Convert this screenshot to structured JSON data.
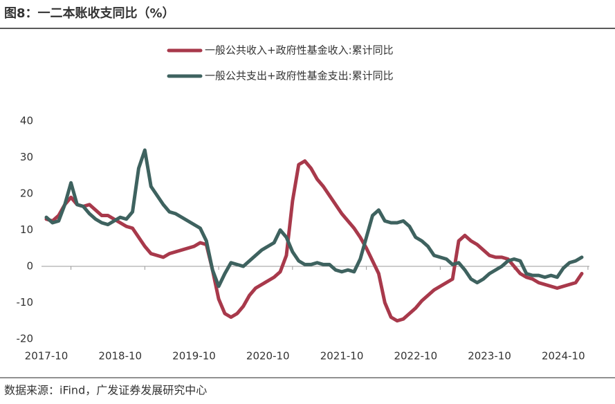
{
  "chart_data": {
    "type": "line",
    "title": "图8：一二本账收支同比（%）",
    "source": "数据来源：iFind，广发证券发展研究中心",
    "categories": [
      "2017-10",
      null,
      null,
      null,
      null,
      null,
      null,
      null,
      null,
      null,
      null,
      null,
      "2018-10",
      null,
      null,
      null,
      null,
      null,
      null,
      null,
      null,
      null,
      null,
      null,
      "2019-10",
      null,
      null,
      null,
      null,
      null,
      null,
      null,
      null,
      null,
      null,
      null,
      "2020-10",
      null,
      null,
      null,
      null,
      null,
      null,
      null,
      null,
      null,
      null,
      null,
      "2021-10",
      null,
      null,
      null,
      null,
      null,
      null,
      null,
      null,
      null,
      null,
      null,
      "2022-10",
      null,
      null,
      null,
      null,
      null,
      null,
      null,
      null,
      null,
      null,
      null,
      "2023-10",
      null,
      null,
      null,
      null,
      null,
      null,
      null,
      null,
      null,
      null,
      null,
      "2024-10",
      null,
      null,
      null
    ],
    "series": [
      {
        "name": "一般公共收入+政府性基金收入:累计同比",
        "color": "#a8394b",
        "values": [
          13,
          12.5,
          14,
          17,
          19,
          17,
          16.5,
          17,
          15.5,
          14,
          14,
          13,
          12,
          11,
          10.5,
          8,
          5.5,
          3.5,
          3,
          2.5,
          3.5,
          4,
          4.5,
          5,
          5.5,
          6.5,
          6,
          -1,
          -9,
          -13,
          -14,
          -13,
          -11,
          -8,
          -6,
          -5,
          -4,
          -3,
          -1.5,
          3,
          18,
          28,
          29,
          27,
          24,
          22,
          19.5,
          17,
          14.5,
          12.5,
          10.5,
          8,
          5,
          1.5,
          -2,
          -10,
          -14,
          -15,
          -14.5,
          -13,
          -11.5,
          -9.5,
          -8,
          -6.5,
          -5.5,
          -4.5,
          -3.5,
          7,
          8.5,
          7,
          6,
          4.5,
          3,
          2.5,
          2.5,
          2,
          0,
          -2,
          -3,
          -3.5,
          -4.5,
          -5,
          -5.5,
          -6,
          -5.5,
          -5,
          -4.5,
          -2
        ]
      },
      {
        "name": "一般公共支出+政府性基金支出:累计同比",
        "color": "#3e625f",
        "values": [
          13.5,
          12,
          12.5,
          17,
          23,
          17,
          16.5,
          14.5,
          13,
          12,
          11.5,
          12.5,
          13.5,
          13,
          15,
          27,
          32,
          22,
          19.5,
          17,
          15,
          14.5,
          13.5,
          12.5,
          11.5,
          10.5,
          7,
          -1,
          -5.5,
          -2,
          1,
          0.5,
          0,
          1.5,
          3,
          4.5,
          5.5,
          6.5,
          10,
          8,
          4,
          1.5,
          0.5,
          0.5,
          1,
          0.5,
          0.5,
          -1,
          -1.5,
          -1,
          -1.5,
          2,
          8,
          14,
          15.5,
          12.5,
          12,
          12,
          12.5,
          11,
          8,
          7,
          5.5,
          3,
          2.5,
          2,
          0.5,
          1,
          -1,
          -3.5,
          -4.5,
          -3.5,
          -2,
          -1,
          0,
          1.5,
          2,
          1.5,
          -2,
          -2.5,
          -2.5,
          -3,
          -2.5,
          -3,
          -0.5,
          1,
          1.5,
          2.5
        ]
      }
    ],
    "ylim": [
      -20,
      40
    ],
    "yticks": [
      -20,
      -10,
      0,
      10,
      20,
      30,
      40
    ],
    "grid": false
  }
}
